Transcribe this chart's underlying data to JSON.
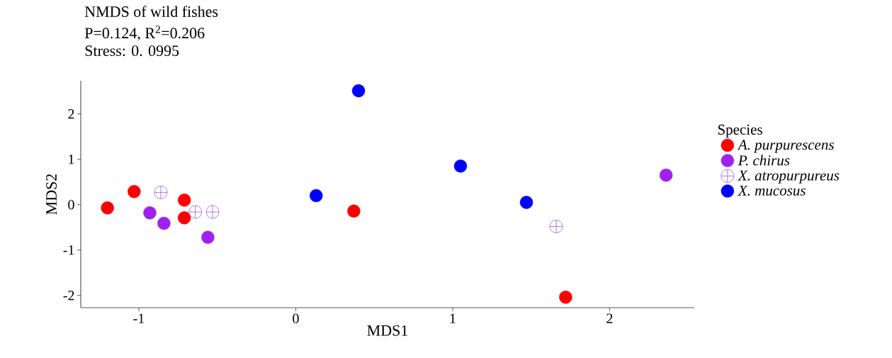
{
  "chart_data": {
    "type": "scatter",
    "title": "NMDS of wild fishes",
    "subtitle": "P=0.124, R$^{2}$=0.206",
    "annotations": [
      "Stress: 0. 0995"
    ],
    "xlabel": "MDS1",
    "ylabel": "MDS2",
    "legend_title": "Species",
    "legend": "right",
    "grid": false,
    "xlim": [
      -1.37,
      2.54
    ],
    "ylim": [
      -2.27,
      2.73
    ],
    "xticks": [
      -1,
      0,
      1,
      2
    ],
    "yticks": [
      -2,
      -1,
      0,
      1,
      2
    ],
    "series": [
      {
        "name": "A. purpurescens",
        "color": "#ff0000",
        "marker": "circle",
        "x": [
          -1.2,
          -1.03,
          -0.71,
          -0.71,
          0.37,
          1.72
        ],
        "values": [
          -0.07,
          0.29,
          0.1,
          -0.29,
          -0.14,
          -2.04
        ]
      },
      {
        "name": "P. chirus",
        "color": "#a020f0",
        "marker": "circle",
        "x": [
          -0.93,
          -0.84,
          -0.56,
          2.36
        ],
        "values": [
          -0.18,
          -0.41,
          -0.72,
          0.65
        ]
      },
      {
        "name": "X. atropurpureus",
        "color": "#9b59d0",
        "marker": "cross",
        "x": [
          -0.86,
          -0.64,
          -0.53,
          1.66
        ],
        "values": [
          0.27,
          -0.16,
          -0.16,
          -0.48
        ]
      },
      {
        "name": "X. mucosus",
        "color": "#0000ff",
        "marker": "circle",
        "x": [
          0.4,
          0.13,
          1.05,
          1.47
        ],
        "values": [
          2.51,
          0.2,
          0.85,
          0.05
        ]
      }
    ]
  }
}
